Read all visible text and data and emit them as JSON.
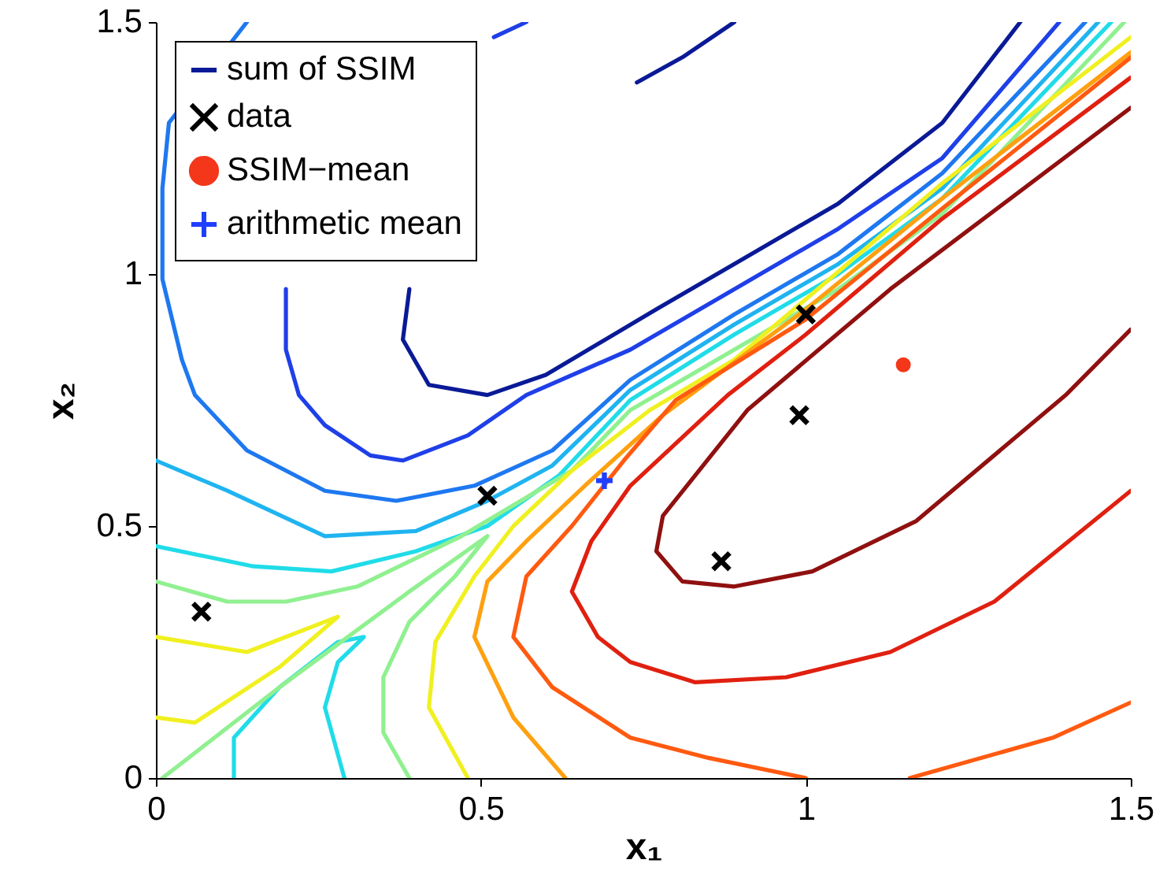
{
  "chart_data": {
    "type": "line",
    "xlabel": "x₁",
    "ylabel": "x₂",
    "xlim": [
      0,
      1.5
    ],
    "ylim": [
      0,
      1.5
    ],
    "xticks": [
      0,
      0.5,
      1,
      1.5
    ],
    "yticks": [
      0,
      0.5,
      1,
      1.5
    ],
    "legend": "top left",
    "series": [
      {
        "name": "sum of SSIM",
        "color": "#0a1a96",
        "x": [
          0.39,
          0.38,
          0.42,
          0.51,
          0.6,
          0.77,
          0.89,
          1.05,
          1.21,
          1.33
        ],
        "values": [
          0.97,
          0.87,
          0.78,
          0.76,
          0.8,
          0.93,
          1.02,
          1.14,
          1.3,
          1.5
        ]
      },
      {
        "color": "#0a1a96",
        "x": [
          0.74,
          0.81,
          0.89
        ],
        "values": [
          1.38,
          1.43,
          1.5
        ]
      },
      {
        "color": "#1f3fe8",
        "x": [
          0.2,
          0.2,
          0.22,
          0.26,
          0.33,
          0.38,
          0.48,
          0.57,
          0.73,
          0.89,
          1.05,
          1.21,
          1.39
        ],
        "values": [
          0.97,
          0.85,
          0.76,
          0.7,
          0.64,
          0.63,
          0.68,
          0.76,
          0.85,
          0.97,
          1.09,
          1.23,
          1.5
        ]
      },
      {
        "color": "#1f3fe8",
        "x": [
          0.52,
          0.57
        ],
        "values": [
          1.47,
          1.5
        ]
      },
      {
        "color": "#1e78f0",
        "x": [
          0.14,
          0.02,
          0.01,
          0.01,
          0.04,
          0.06,
          0.14,
          0.26,
          0.37,
          0.49,
          0.61,
          0.73,
          0.89,
          1.05,
          1.21,
          1.43
        ],
        "values": [
          1.5,
          1.3,
          1.17,
          0.99,
          0.83,
          0.76,
          0.65,
          0.57,
          0.55,
          0.58,
          0.65,
          0.79,
          0.92,
          1.04,
          1.2,
          1.5
        ]
      },
      {
        "color": "#1fb4f0",
        "x": [
          0.0,
          0.11,
          0.26,
          0.4,
          0.51,
          0.61,
          0.73,
          0.89,
          1.05,
          1.21,
          1.45
        ],
        "values": [
          0.63,
          0.57,
          0.48,
          0.49,
          0.55,
          0.62,
          0.77,
          0.9,
          1.02,
          1.17,
          1.5
        ]
      },
      {
        "color": "#20dce8",
        "x": [
          0.0,
          0.15,
          0.27,
          0.4,
          0.51,
          0.62,
          0.73,
          0.89,
          1.05,
          1.21,
          1.47
        ],
        "values": [
          0.46,
          0.42,
          0.41,
          0.45,
          0.5,
          0.6,
          0.75,
          0.88,
          1.0,
          1.15,
          1.5
        ]
      },
      {
        "color": "#20dce8",
        "x": [
          0.12,
          0.12,
          0.19,
          0.28,
          0.32,
          0.28,
          0.26,
          0.29
        ],
        "values": [
          0.0,
          0.08,
          0.18,
          0.27,
          0.28,
          0.23,
          0.14,
          0.0
        ]
      },
      {
        "color": "#90f090",
        "x": [
          0.0,
          0.11,
          0.2,
          0.31,
          0.47,
          0.64,
          0.73,
          0.89,
          1.05,
          1.21,
          1.49
        ],
        "values": [
          0.39,
          0.35,
          0.35,
          0.38,
          0.48,
          0.61,
          0.73,
          0.85,
          0.97,
          1.12,
          1.5
        ]
      },
      {
        "color": "#90f090",
        "x": [
          0.01,
          0.19,
          0.39,
          0.51,
          0.46,
          0.39,
          0.35,
          0.35,
          0.39
        ],
        "values": [
          0.0,
          0.18,
          0.37,
          0.48,
          0.4,
          0.31,
          0.2,
          0.09,
          0.0
        ]
      },
      {
        "color": "#f0f020",
        "x": [
          0.0,
          0.14,
          0.28,
          0.19,
          0.06,
          0.0
        ],
        "values": [
          0.28,
          0.25,
          0.32,
          0.22,
          0.11,
          0.12
        ]
      },
      {
        "color": "#f0f020",
        "x": [
          0.48,
          0.42,
          0.43,
          0.49,
          0.55,
          0.64,
          0.76,
          0.89,
          1.0,
          1.21,
          1.5
        ],
        "values": [
          0.0,
          0.14,
          0.27,
          0.4,
          0.5,
          0.61,
          0.73,
          0.83,
          0.95,
          1.18,
          1.47
        ]
      },
      {
        "color": "#ffa010",
        "x": [
          0.63,
          0.55,
          0.49,
          0.51,
          0.57,
          0.66,
          0.78,
          1.0,
          1.21,
          1.5
        ],
        "values": [
          0.0,
          0.12,
          0.28,
          0.39,
          0.47,
          0.58,
          0.72,
          0.93,
          1.15,
          1.44
        ]
      },
      {
        "color": "#ff5a10",
        "x": [
          1.0,
          0.85,
          0.73,
          0.61,
          0.55,
          0.57,
          0.64,
          0.72,
          0.8,
          1.0,
          1.21,
          1.5
        ],
        "values": [
          0.0,
          0.04,
          0.08,
          0.18,
          0.28,
          0.4,
          0.5,
          0.63,
          0.75,
          0.91,
          1.13,
          1.43
        ]
      },
      {
        "color": "#ff5a10",
        "x": [
          1.16,
          1.38,
          1.5
        ],
        "values": [
          0.0,
          0.08,
          0.15
        ]
      },
      {
        "color": "#e02010",
        "x": [
          1.5,
          1.29,
          1.13,
          0.97,
          0.83,
          0.73,
          0.68,
          0.64,
          0.67,
          0.73,
          0.88,
          1.0,
          1.21,
          1.5
        ],
        "values": [
          0.57,
          0.35,
          0.25,
          0.2,
          0.19,
          0.23,
          0.28,
          0.37,
          0.47,
          0.58,
          0.76,
          0.88,
          1.11,
          1.39
        ]
      },
      {
        "color": "#901010",
        "x": [
          1.5,
          1.4,
          1.17,
          1.01,
          0.89,
          0.81,
          0.77,
          0.78,
          0.91,
          1.13,
          1.5
        ],
        "values": [
          0.89,
          0.76,
          0.51,
          0.41,
          0.38,
          0.39,
          0.45,
          0.52,
          0.73,
          0.97,
          1.33
        ]
      },
      {
        "name": "data",
        "type": "scatter",
        "marker": "cross",
        "color": "#000000",
        "x": [
          0.07,
          0.51,
          0.87,
          0.99,
          1.0
        ],
        "values": [
          0.33,
          0.56,
          0.43,
          0.72,
          0.92
        ]
      },
      {
        "name": "SSIM−mean",
        "type": "scatter",
        "marker": "circle",
        "color": "#f4361a",
        "x": [
          1.15
        ],
        "values": [
          0.82
        ]
      },
      {
        "name": "arithmetic mean",
        "type": "scatter",
        "marker": "plus",
        "color": "#1f3fff",
        "x": [
          0.69
        ],
        "values": [
          0.59
        ]
      }
    ]
  }
}
